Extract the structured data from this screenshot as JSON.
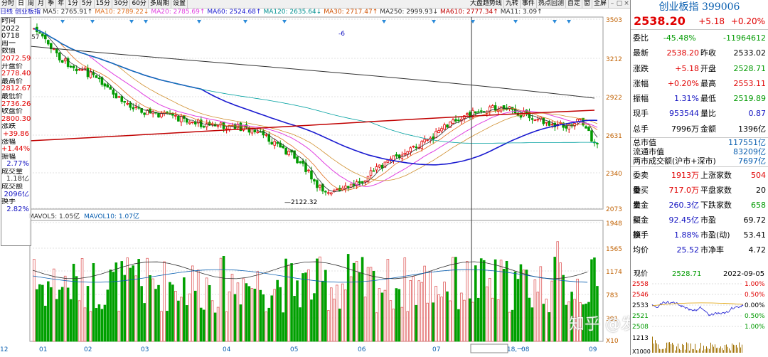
{
  "toolbar": {
    "left": [
      {
        "label": "分时",
        "active": false
      },
      {
        "label": "日",
        "active": true
      },
      {
        "label": "周",
        "active": false
      },
      {
        "label": "月",
        "active": false
      },
      {
        "label": "季",
        "active": false
      },
      {
        "label": "年",
        "active": false
      },
      {
        "label": "1分",
        "active": false
      },
      {
        "label": "5分",
        "active": false
      },
      {
        "label": "15分",
        "active": false
      },
      {
        "label": "30分",
        "active": false
      },
      {
        "label": "60分",
        "active": false
      },
      {
        "label": "多周期",
        "active": false
      },
      {
        "label": "设置",
        "active": false
      }
    ],
    "right": [
      "大盘趋势线",
      "九转",
      "事件",
      "热点回测",
      "自定",
      "窗",
      "全屏"
    ]
  },
  "legend": [
    {
      "text": "日线",
      "color": "#1010c0"
    },
    {
      "text": "创业板指",
      "color": "#1010c0"
    },
    {
      "text": "MA5: 2765.91↑",
      "color": "#303030"
    },
    {
      "text": "MA10: 2789.22↓",
      "color": "#e07020"
    },
    {
      "text": "MA20: 2785.69↑",
      "color": "#e040e0"
    },
    {
      "text": "MA60: 2524.68↑",
      "color": "#1a1ad0"
    },
    {
      "text": "MA120: 2635.64↓",
      "color": "#009090"
    },
    {
      "text": "MA30: 2717.47↑",
      "color": "#d05000"
    },
    {
      "text": "MA250: 2999.93↓",
      "color": "#303030"
    },
    {
      "text": "MA610: 2777.34↑",
      "color": "#c00000"
    },
    {
      "text": "MA11: 3.09↑",
      "color": "#303030"
    }
  ],
  "volume_legend": [
    {
      "text": "MAVOL5: 1.05亿",
      "color": "#303030"
    },
    {
      "text": "MAVOL10: 1.07亿",
      "color": "#0a5fb0"
    }
  ],
  "y_axis_labels": [
    "3503",
    "3212",
    "2922",
    "2631",
    "2340",
    "2073"
  ],
  "volume_axis_labels": [
    "1948",
    "1565",
    "1174",
    "783",
    "391",
    "X10"
  ],
  "x_axis_labels": [
    "12",
    "01",
    "02",
    "03",
    "04",
    "05",
    "06",
    "07",
    "2022-07-18,一",
    "08",
    "09"
  ],
  "annotations": {
    "low": "2122.32",
    "flag": "-6",
    "topleft": "57"
  },
  "data_window": [
    {
      "label": "时间",
      "value": "",
      "c": ""
    },
    {
      "label": "2022",
      "value": "",
      "c": ""
    },
    {
      "label": "0718",
      "value": "",
      "c": ""
    },
    {
      "label": "周一",
      "value": "",
      "c": ""
    },
    {
      "label": "数值",
      "value": "",
      "c": ""
    },
    {
      "label": "",
      "value": "2072.59",
      "c": "red"
    },
    {
      "label": "开盘价",
      "value": "",
      "c": ""
    },
    {
      "label": "",
      "value": "2778.40",
      "c": "red"
    },
    {
      "label": "最高价",
      "value": "",
      "c": ""
    },
    {
      "label": "",
      "value": "2812.67",
      "c": "red"
    },
    {
      "label": "最低价",
      "value": "",
      "c": ""
    },
    {
      "label": "",
      "value": "2736.26",
      "c": "red"
    },
    {
      "label": "收盘价",
      "value": "",
      "c": ""
    },
    {
      "label": "",
      "value": "2800.30",
      "c": "red"
    },
    {
      "label": "涨跌",
      "value": "",
      "c": ""
    },
    {
      "label": "",
      "value": "+39.86",
      "c": "red"
    },
    {
      "label": "涨幅",
      "value": "",
      "c": ""
    },
    {
      "label": "",
      "value": "+1.44%",
      "c": "red"
    },
    {
      "label": "振幅",
      "value": "",
      "c": ""
    },
    {
      "label": "",
      "value": "2.77%",
      "c": "blue"
    },
    {
      "label": "成交量",
      "value": "",
      "c": ""
    },
    {
      "label": "",
      "value": "1.18亿",
      "c": ""
    },
    {
      "label": "成交额",
      "value": "",
      "c": ""
    },
    {
      "label": "",
      "value": "2096亿",
      "c": "blue"
    },
    {
      "label": "换手",
      "value": "",
      "c": ""
    },
    {
      "label": "",
      "value": "2.82%",
      "c": "blue"
    }
  ],
  "quote": {
    "name": "创业板指 399006",
    "price": "2538.20",
    "change": "+5.18",
    "pct": "+0.20%"
  },
  "quote_rows": [
    {
      "l1": "委比",
      "v1": "-45.48%",
      "c1": "green",
      "l2": "",
      "v2": "-11964612",
      "c2": "green"
    },
    {
      "l1": "最新",
      "v1": "2538.20",
      "c1": "red",
      "l2": "昨收",
      "v2": "2533.02",
      "c2": ""
    },
    {
      "l1": "涨跌",
      "v1": "+5.18",
      "c1": "red",
      "l2": "开盘",
      "v2": "2528.71",
      "c2": "green"
    },
    {
      "l1": "涨幅",
      "v1": "+0.20%",
      "c1": "red",
      "l2": "最高",
      "v2": "2553.11",
      "c2": "red"
    },
    {
      "l1": "振幅",
      "v1": "1.31%",
      "c1": "blue",
      "l2": "最低",
      "v2": "2519.89",
      "c2": "green"
    },
    {
      "l1": "现手",
      "v1": "953544",
      "c1": "blue",
      "l2": "量比",
      "v2": "0.87",
      "c2": "blue"
    },
    {
      "l1": "总手",
      "v1": "7996万",
      "c1": "",
      "l2": "金额",
      "v2": "1396亿",
      "c2": ""
    }
  ],
  "market_rows": [
    {
      "l": "总市值",
      "v": "117551亿"
    },
    {
      "l": "流通市值",
      "v": "83209亿"
    },
    {
      "l": "两市成交额(沪市+深市)",
      "v": "7697亿"
    }
  ],
  "order_rows": [
    {
      "l1": "委卖量",
      "v1": "1913万",
      "c1": "red",
      "l2": "上涨家数",
      "v2": "504",
      "c2": "red"
    },
    {
      "l1": "委买量",
      "v1": "717.0万",
      "c1": "red",
      "l2": "平盘家数",
      "v2": "20",
      "c2": ""
    },
    {
      "l1": "卖金额",
      "v1": "260.3亿",
      "c1": "blue",
      "l2": "下跌家数",
      "v2": "658",
      "c2": "green"
    },
    {
      "l1": "买金额",
      "v1": "92.45亿",
      "c1": "blue",
      "l2": "市盈",
      "v2": "69.72",
      "c2": ""
    },
    {
      "l1": "换手",
      "v1": "1.88%",
      "c1": "blue",
      "l2": "市盈(动)",
      "v2": "53.41",
      "c2": ""
    },
    {
      "l1": "均价",
      "v1": "25.52",
      "c1": "blue",
      "l2": "市净率",
      "v2": "4.72",
      "c2": ""
    }
  ],
  "mini_chart": {
    "header_left": "现价",
    "header_mid": "2528.71",
    "header_right": "2022-09-05",
    "y_left": [
      "2558",
      "2546",
      "2533",
      "2521",
      "2508"
    ],
    "y_right": [
      "1.00%",
      "0.50%",
      "0.00%",
      "0.50%",
      "1.00%"
    ],
    "vol_label": "1213",
    "footer": "X1000"
  },
  "watermark": "知乎 @发财狗998",
  "colors": {
    "up": "#e00000",
    "down": "#009a00",
    "ma60": "#1a1ad0",
    "ma250": "#303030",
    "ma610": "#c00000"
  }
}
